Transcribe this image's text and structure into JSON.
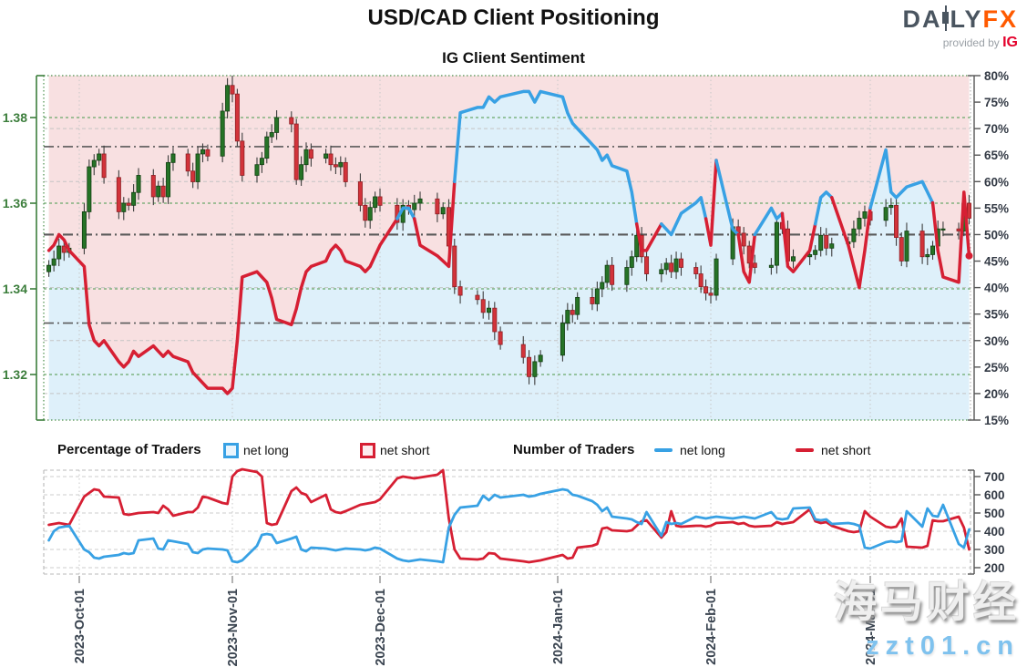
{
  "header": {
    "title": "USD/CAD Client Positioning",
    "subtitle": "IG Client Sentiment"
  },
  "logo": {
    "brand_part1": "DA",
    "brand_part2": "LY",
    "brand_accent": "FX",
    "provided_by": "provided by",
    "provider": "IG"
  },
  "legend": {
    "percentage_title": "Percentage of Traders",
    "number_title": "Number of Traders",
    "pct_net_long": "net long",
    "pct_net_short": "net short",
    "num_net_long": "net long",
    "num_net_short": "net short"
  },
  "watermark": {
    "line1": "海马财经",
    "line2": "zzt01.cn"
  },
  "colors": {
    "net_long_blue": "#38a1e4",
    "net_short_red": "#d61f33",
    "fill_above_pink": "#f8e0e1",
    "fill_below_blue": "#def0fa",
    "candle_up_green": "#267326",
    "candle_down_red": "#d2333a",
    "price_axis_green": "#3c7e3c",
    "axis_text_dark": "#333a45",
    "ref_line_gray": "#5a5a5a",
    "grid_green": "#6aa86a",
    "grid_gray": "#c4c4c4",
    "watermark_blue": "#7fc2ee"
  },
  "chart_data": {
    "type": "candlestick+line",
    "title": "IG Client Sentiment",
    "legend_position": "between charts",
    "grid": "on",
    "dates": [
      "2023-09-25",
      "2023-09-26",
      "2023-09-27",
      "2023-09-28",
      "2023-09-29",
      "2023-10-02",
      "2023-10-03",
      "2023-10-04",
      "2023-10-05",
      "2023-10-06",
      "2023-10-09",
      "2023-10-10",
      "2023-10-11",
      "2023-10-12",
      "2023-10-13",
      "2023-10-16",
      "2023-10-17",
      "2023-10-18",
      "2023-10-19",
      "2023-10-20",
      "2023-10-23",
      "2023-10-24",
      "2023-10-25",
      "2023-10-26",
      "2023-10-27",
      "2023-10-30",
      "2023-10-31",
      "2023-11-01",
      "2023-11-02",
      "2023-11-03",
      "2023-11-06",
      "2023-11-07",
      "2023-11-08",
      "2023-11-09",
      "2023-11-10",
      "2023-11-13",
      "2023-11-14",
      "2023-11-15",
      "2023-11-16",
      "2023-11-17",
      "2023-11-20",
      "2023-11-21",
      "2023-11-22",
      "2023-11-23",
      "2023-11-24",
      "2023-11-27",
      "2023-11-28",
      "2023-11-29",
      "2023-11-30",
      "2023-12-01",
      "2023-12-04",
      "2023-12-05",
      "2023-12-06",
      "2023-12-07",
      "2023-12-08",
      "2023-12-11",
      "2023-12-12",
      "2023-12-13",
      "2023-12-14",
      "2023-12-15",
      "2023-12-18",
      "2023-12-19",
      "2023-12-20",
      "2023-12-21",
      "2023-12-22",
      "2023-12-26",
      "2023-12-27",
      "2023-12-28",
      "2023-12-29",
      "2024-01-02",
      "2024-01-03",
      "2024-01-04",
      "2024-01-05",
      "2024-01-08",
      "2024-01-09",
      "2024-01-10",
      "2024-01-11",
      "2024-01-12",
      "2024-01-15",
      "2024-01-16",
      "2024-01-17",
      "2024-01-18",
      "2024-01-19",
      "2024-01-22",
      "2024-01-23",
      "2024-01-24",
      "2024-01-25",
      "2024-01-26",
      "2024-01-29",
      "2024-01-30",
      "2024-01-31",
      "2024-02-01",
      "2024-02-02",
      "2024-02-05",
      "2024-02-06",
      "2024-02-07",
      "2024-02-08",
      "2024-02-09",
      "2024-02-12",
      "2024-02-13",
      "2024-02-14",
      "2024-02-15",
      "2024-02-16",
      "2024-02-19",
      "2024-02-20",
      "2024-02-21",
      "2024-02-22",
      "2024-02-23",
      "2024-02-26",
      "2024-02-27",
      "2024-02-28",
      "2024-02-29",
      "2024-03-01",
      "2024-03-04",
      "2024-03-05",
      "2024-03-06",
      "2024-03-07",
      "2024-03-08",
      "2024-03-11",
      "2024-03-12",
      "2024-03-13",
      "2024-03-14",
      "2024-03-15",
      "2024-03-18",
      "2024-03-19",
      "2024-03-20"
    ],
    "price_close": [
      1.3455,
      1.347,
      1.35,
      1.3485,
      1.3495,
      1.358,
      1.3685,
      1.37,
      1.3715,
      1.366,
      1.358,
      1.36,
      1.3595,
      1.3625,
      1.3665,
      1.3615,
      1.364,
      1.3615,
      1.3695,
      1.3715,
      1.3675,
      1.365,
      1.3715,
      1.3725,
      1.371,
      1.3815,
      1.3875,
      1.3855,
      1.3745,
      1.3665,
      1.369,
      1.3705,
      1.3755,
      1.3765,
      1.38,
      1.3785,
      1.3655,
      1.369,
      1.3725,
      1.3705,
      1.3715,
      1.369,
      1.3685,
      1.3695,
      1.365,
      1.3595,
      1.356,
      1.359,
      1.3615,
      1.3595,
      1.3555,
      1.3595,
      1.3585,
      1.36,
      1.361,
      1.3575,
      1.359,
      1.35,
      1.3405,
      1.3385,
      1.3375,
      1.3345,
      1.3355,
      1.33,
      1.327,
      1.324,
      1.3195,
      1.323,
      1.3245,
      1.332,
      1.335,
      1.334,
      1.338,
      1.3365,
      1.34,
      1.3415,
      1.3455,
      1.341,
      1.345,
      1.3475,
      1.3525,
      1.3475,
      1.3435,
      1.3445,
      1.346,
      1.344,
      1.347,
      1.345,
      1.3435,
      1.3405,
      1.339,
      1.3385,
      1.347,
      1.3545,
      1.353,
      1.35,
      1.346,
      1.345,
      1.3455,
      1.3555,
      1.354,
      1.3465,
      1.3475,
      1.348,
      1.349,
      1.3525,
      1.3495,
      1.3505,
      1.351,
      1.354,
      1.3565,
      1.358,
      1.356,
      1.359,
      1.3595,
      1.352,
      1.3465,
      1.3535,
      1.3475,
      1.348,
      1.35,
      1.354,
      1.354,
      1.3535,
      1.36,
      1.3565
    ],
    "candle_overrides": {
      "2023-11-01": {
        "high": 1.3898
      },
      "2023-12-27": {
        "low": 1.3177
      },
      "2024-03-19": {
        "high": 1.3618
      }
    },
    "net_long_pct": [
      47,
      48,
      50,
      49,
      47,
      44,
      33,
      30,
      29,
      30,
      26,
      25,
      26,
      28,
      27,
      29,
      28,
      27,
      28,
      27,
      26,
      24,
      23,
      22,
      21,
      21,
      20,
      21,
      30,
      42,
      43,
      42,
      41,
      38,
      34,
      33,
      36,
      40,
      43,
      44,
      45,
      47,
      48,
      47,
      45,
      44,
      43,
      44,
      46,
      48,
      53,
      55,
      55,
      53,
      48,
      46,
      45,
      44,
      60,
      73,
      74,
      74,
      76,
      75,
      76,
      77,
      77,
      75,
      77,
      76,
      73,
      71,
      70,
      67,
      66,
      64,
      65,
      63,
      62,
      58,
      52,
      47,
      47,
      52,
      51,
      50,
      52,
      54,
      56,
      57,
      53,
      48,
      64,
      51,
      50,
      43,
      41,
      50,
      55,
      53,
      54,
      44,
      43,
      47,
      52,
      57,
      58,
      57,
      48,
      44,
      40,
      47,
      55,
      66,
      58,
      57,
      58,
      59,
      60,
      58,
      56,
      47,
      42,
      41,
      58,
      46
    ],
    "net_long_traders": [
      350,
      400,
      420,
      425,
      430,
      300,
      285,
      255,
      250,
      260,
      270,
      280,
      275,
      280,
      350,
      360,
      305,
      300,
      350,
      345,
      330,
      285,
      280,
      300,
      305,
      300,
      295,
      235,
      230,
      240,
      320,
      380,
      385,
      380,
      335,
      360,
      370,
      300,
      290,
      310,
      305,
      300,
      295,
      300,
      305,
      300,
      295,
      300,
      310,
      305,
      250,
      240,
      235,
      240,
      245,
      235,
      230,
      420,
      490,
      530,
      540,
      595,
      570,
      600,
      585,
      600,
      590,
      595,
      605,
      630,
      625,
      600,
      595,
      565,
      545,
      510,
      530,
      480,
      470,
      465,
      450,
      440,
      505,
      375,
      450,
      440,
      445,
      440,
      480,
      475,
      470,
      475,
      480,
      470,
      475,
      480,
      475,
      470,
      505,
      470,
      465,
      470,
      525,
      530,
      465,
      460,
      465,
      440,
      445,
      440,
      430,
      310,
      305,
      340,
      345,
      340,
      345,
      510,
      425,
      525,
      485,
      480,
      545,
      330,
      310,
      410
    ],
    "net_short_traders": [
      435,
      440,
      445,
      440,
      435,
      590,
      610,
      630,
      625,
      590,
      585,
      495,
      490,
      495,
      500,
      505,
      500,
      540,
      520,
      485,
      505,
      505,
      530,
      590,
      585,
      555,
      550,
      700,
      730,
      740,
      725,
      700,
      445,
      435,
      440,
      620,
      640,
      610,
      600,
      560,
      600,
      520,
      505,
      500,
      510,
      545,
      550,
      555,
      560,
      575,
      690,
      700,
      695,
      690,
      695,
      710,
      735,
      470,
      300,
      250,
      245,
      250,
      280,
      277,
      250,
      235,
      230,
      235,
      240,
      270,
      250,
      255,
      310,
      320,
      330,
      415,
      420,
      405,
      400,
      405,
      430,
      455,
      460,
      365,
      395,
      510,
      430,
      425,
      430,
      430,
      425,
      430,
      445,
      450,
      440,
      445,
      430,
      425,
      430,
      450,
      440,
      445,
      450,
      520,
      455,
      445,
      450,
      430,
      400,
      395,
      400,
      510,
      480,
      425,
      420,
      425,
      470,
      315,
      310,
      320,
      460,
      455,
      455,
      480,
      420,
      300
    ],
    "price_axis": {
      "side": "left",
      "ticks": [
        1.32,
        1.34,
        1.36,
        1.38
      ],
      "ylim": [
        1.309,
        1.39
      ]
    },
    "pct_axis": {
      "side": "right",
      "unit": "%",
      "ticks": [
        15,
        20,
        25,
        30,
        35,
        40,
        45,
        50,
        55,
        60,
        65,
        70,
        75,
        80
      ],
      "ylim": [
        15,
        80
      ]
    },
    "count_axis": {
      "side": "right",
      "ticks": [
        200,
        300,
        400,
        500,
        600,
        700
      ],
      "ylim": [
        180,
        760
      ]
    },
    "pct_ref_lines": [
      66.6,
      50,
      33.3
    ],
    "pct_minor_gridlines": [
      20,
      30,
      40,
      60,
      70
    ],
    "threshold_pct": 50,
    "last_value_marker_pct": 46,
    "month_gridlines": [
      "2023-10-01",
      "2023-11-01",
      "2023-12-01",
      "2024-01-01",
      "2024-02-01",
      "2024-03-01"
    ],
    "month_labels": [
      "2023-Oct-01",
      "2023-Nov-01",
      "2023-Dec-01",
      "2024-Jan-01",
      "2024-Feb-01",
      "2024-Mar-01"
    ]
  }
}
